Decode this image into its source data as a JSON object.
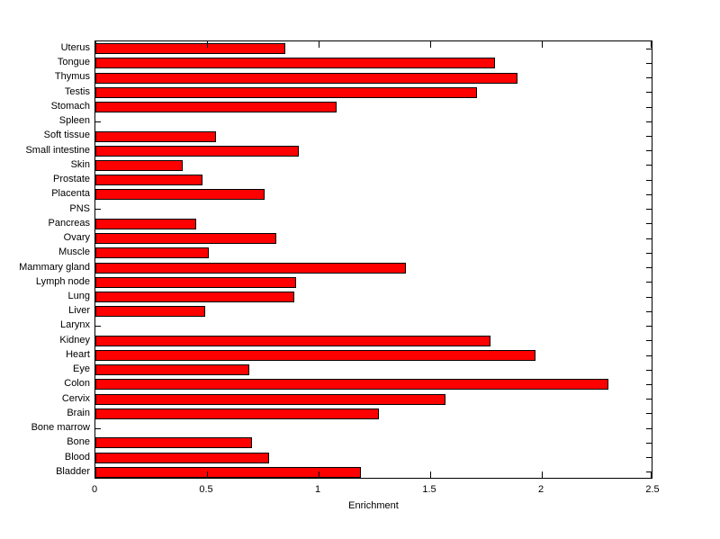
{
  "chart_data": {
    "type": "bar",
    "orientation": "horizontal",
    "xlabel": "Enrichment",
    "xlim": [
      0,
      2.5
    ],
    "x_ticks": [
      0,
      0.5,
      1,
      1.5,
      2,
      2.5
    ],
    "x_tick_labels": [
      "0",
      "0.5",
      "1",
      "1.5",
      "2",
      "2.5"
    ],
    "grid": false,
    "legend": "none",
    "bar_color": "#ff0000",
    "bar_edge_color": "#000000",
    "axis_color": "#000000",
    "background_color": "#ffffff",
    "categories": [
      "Uterus",
      "Tongue",
      "Thymus",
      "Testis",
      "Stomach",
      "Spleen",
      "Soft tissue",
      "Small intestine",
      "Skin",
      "Prostate",
      "Placenta",
      "PNS",
      "Pancreas",
      "Ovary",
      "Muscle",
      "Mammary gland",
      "Lymph node",
      "Lung",
      "Liver",
      "Larynx",
      "Kidney",
      "Heart",
      "Eye",
      "Colon",
      "Cervix",
      "Brain",
      "Bone marrow",
      "Bone",
      "Blood",
      "Bladder"
    ],
    "values": [
      0.85,
      1.79,
      1.89,
      1.71,
      1.08,
      0,
      0.54,
      0.91,
      0.39,
      0.48,
      0.76,
      0,
      0.45,
      0.81,
      0.51,
      1.39,
      0.9,
      0.89,
      0.49,
      0,
      1.77,
      1.97,
      0.69,
      2.3,
      1.57,
      1.27,
      0,
      0.7,
      0.78,
      1.19
    ]
  }
}
